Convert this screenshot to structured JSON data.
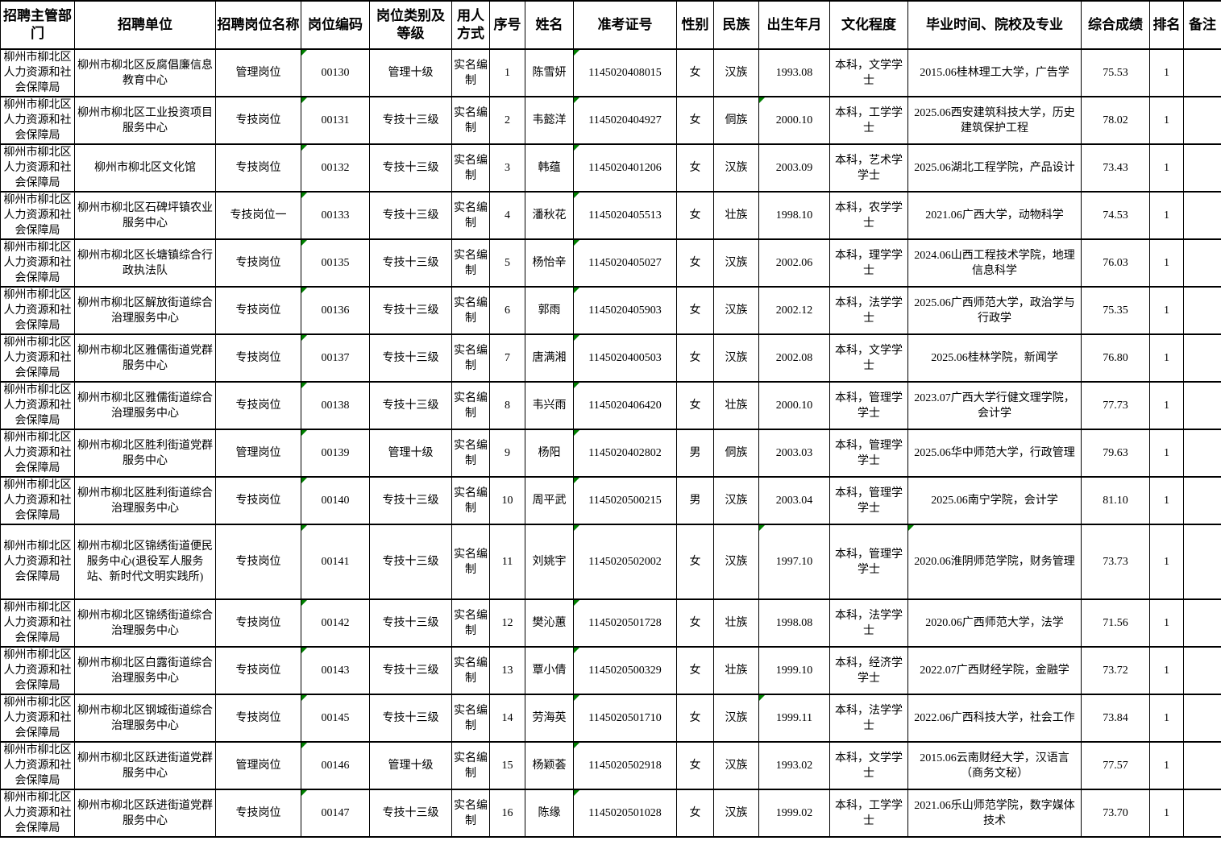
{
  "table": {
    "headers": [
      "招聘主管部门",
      "招聘单位",
      "招聘岗位名称",
      "岗位编码",
      "岗位类别及等级",
      "用人方式",
      "序号",
      "姓名",
      "准考证号",
      "性别",
      "民族",
      "出生年月",
      "文化程度",
      "毕业时间、院校及专业",
      "综合成绩",
      "排名",
      "备注"
    ],
    "rows": [
      [
        "柳州市柳北区人力资源和社会保障局",
        "柳州市柳北区反腐倡廉信息教育中心",
        "管理岗位",
        "00130",
        "管理十级",
        "实名编制",
        "1",
        "陈雪妍",
        "1145020408015",
        "女",
        "汉族",
        "1993.08",
        "本科，文学学士",
        "2015.06桂林理工大学，广告学",
        "75.53",
        "1",
        ""
      ],
      [
        "柳州市柳北区人力资源和社会保障局",
        "柳州市柳北区工业投资项目服务中心",
        "专技岗位",
        "00131",
        "专技十三级",
        "实名编制",
        "2",
        "韦懿洋",
        "1145020404927",
        "女",
        "侗族",
        "2000.10",
        "本科，工学学士",
        "2025.06西安建筑科技大学，历史建筑保护工程",
        "78.02",
        "1",
        ""
      ],
      [
        "柳州市柳北区人力资源和社会保障局",
        "柳州市柳北区文化馆",
        "专技岗位",
        "00132",
        "专技十三级",
        "实名编制",
        "3",
        "韩蕴",
        "1145020401206",
        "女",
        "汉族",
        "2003.09",
        "本科，艺术学学士",
        "2025.06湖北工程学院，产品设计",
        "73.43",
        "1",
        ""
      ],
      [
        "柳州市柳北区人力资源和社会保障局",
        "柳州市柳北区石碑坪镇农业服务中心",
        "专技岗位一",
        "00133",
        "专技十三级",
        "实名编制",
        "4",
        "潘秋花",
        "1145020405513",
        "女",
        "壮族",
        "1998.10",
        "本科，农学学士",
        "2021.06广西大学，动物科学",
        "74.53",
        "1",
        ""
      ],
      [
        "柳州市柳北区人力资源和社会保障局",
        "柳州市柳北区长塘镇综合行政执法队",
        "专技岗位",
        "00135",
        "专技十三级",
        "实名编制",
        "5",
        "杨怡辛",
        "1145020405027",
        "女",
        "汉族",
        "2002.06",
        "本科，理学学士",
        "2024.06山西工程技术学院，地理信息科学",
        "76.03",
        "1",
        ""
      ],
      [
        "柳州市柳北区人力资源和社会保障局",
        "柳州市柳北区解放街道综合治理服务中心",
        "专技岗位",
        "00136",
        "专技十三级",
        "实名编制",
        "6",
        "郭雨",
        "1145020405903",
        "女",
        "汉族",
        "2002.12",
        "本科，法学学士",
        "2025.06广西师范大学，政治学与行政学",
        "75.35",
        "1",
        ""
      ],
      [
        "柳州市柳北区人力资源和社会保障局",
        "柳州市柳北区雅儒街道党群服务中心",
        "专技岗位",
        "00137",
        "专技十三级",
        "实名编制",
        "7",
        "唐满湘",
        "1145020400503",
        "女",
        "汉族",
        "2002.08",
        "本科，文学学士",
        "2025.06桂林学院，新闻学",
        "76.80",
        "1",
        ""
      ],
      [
        "柳州市柳北区人力资源和社会保障局",
        "柳州市柳北区雅儒街道综合治理服务中心",
        "专技岗位",
        "00138",
        "专技十三级",
        "实名编制",
        "8",
        "韦兴雨",
        "1145020406420",
        "女",
        "壮族",
        "2000.10",
        "本科，管理学学士",
        "2023.07广西大学行健文理学院，会计学",
        "77.73",
        "1",
        ""
      ],
      [
        "柳州市柳北区人力资源和社会保障局",
        "柳州市柳北区胜利街道党群服务中心",
        "管理岗位",
        "00139",
        "管理十级",
        "实名编制",
        "9",
        "杨阳",
        "1145020402802",
        "男",
        "侗族",
        "2003.03",
        "本科，管理学学士",
        "2025.06华中师范大学，行政管理",
        "79.63",
        "1",
        ""
      ],
      [
        "柳州市柳北区人力资源和社会保障局",
        "柳州市柳北区胜利街道综合治理服务中心",
        "专技岗位",
        "00140",
        "专技十三级",
        "实名编制",
        "10",
        "周平武",
        "1145020500215",
        "男",
        "汉族",
        "2003.04",
        "本科，管理学学士",
        "2025.06南宁学院，会计学",
        "81.10",
        "1",
        ""
      ],
      [
        "柳州市柳北区人力资源和社会保障局",
        "柳州市柳北区锦绣街道便民服务中心(退役军人服务站、新时代文明实践所)",
        "专技岗位",
        "00141",
        "专技十三级",
        "实名编制",
        "11",
        "刘姚宇",
        "1145020502002",
        "女",
        "汉族",
        "1997.10",
        "本科，管理学学士",
        "2020.06淮阴师范学院，财务管理",
        "73.73",
        "1",
        ""
      ],
      [
        "柳州市柳北区人力资源和社会保障局",
        "柳州市柳北区锦绣街道综合治理服务中心",
        "专技岗位",
        "00142",
        "专技十三级",
        "实名编制",
        "12",
        "樊沁蕙",
        "1145020501728",
        "女",
        "壮族",
        "1998.08",
        "本科，法学学士",
        "2020.06广西师范大学，法学",
        "71.56",
        "1",
        ""
      ],
      [
        "柳州市柳北区人力资源和社会保障局",
        "柳州市柳北区白露街道综合治理服务中心",
        "专技岗位",
        "00143",
        "专技十三级",
        "实名编制",
        "13",
        "覃小倩",
        "1145020500329",
        "女",
        "壮族",
        "1999.10",
        "本科，经济学学士",
        "2022.07广西财经学院，金融学",
        "73.72",
        "1",
        ""
      ],
      [
        "柳州市柳北区人力资源和社会保障局",
        "柳州市柳北区钢城街道综合治理服务中心",
        "专技岗位",
        "00145",
        "专技十三级",
        "实名编制",
        "14",
        "劳海英",
        "1145020501710",
        "女",
        "汉族",
        "1999.11",
        "本科，法学学士",
        "2022.06广西科技大学，社会工作",
        "73.84",
        "1",
        ""
      ],
      [
        "柳州市柳北区人力资源和社会保障局",
        "柳州市柳北区跃进街道党群服务中心",
        "管理岗位",
        "00146",
        "管理十级",
        "实名编制",
        "15",
        "杨颖荟",
        "1145020502918",
        "女",
        "汉族",
        "1993.02",
        "本科，文学学士",
        "2015.06云南财经大学，汉语言（商务文秘）",
        "77.57",
        "1",
        ""
      ],
      [
        "柳州市柳北区人力资源和社会保障局",
        "柳州市柳北区跃进街道党群服务中心",
        "专技岗位",
        "00147",
        "专技十三级",
        "实名编制",
        "16",
        "陈缘",
        "1145020501028",
        "女",
        "汉族",
        "1999.02",
        "本科，工学学士",
        "2021.06乐山师范学院，数字媒体技术",
        "73.70",
        "1",
        ""
      ]
    ],
    "markers": {
      "name": "excel-text-format-marker",
      "color": "#008000",
      "cells_by_row": [
        [
          3,
          8
        ],
        [
          3,
          8,
          11
        ],
        [
          3,
          8
        ],
        [
          3,
          8
        ],
        [
          3,
          8
        ],
        [
          3,
          8
        ],
        [
          3,
          8
        ],
        [
          3,
          8
        ],
        [
          3,
          8
        ],
        [
          3,
          8
        ],
        [
          3,
          8,
          11,
          13
        ],
        [
          3,
          8
        ],
        [
          3,
          8
        ],
        [
          3,
          8,
          11
        ],
        [
          3,
          8
        ],
        [
          3,
          8
        ]
      ]
    }
  }
}
